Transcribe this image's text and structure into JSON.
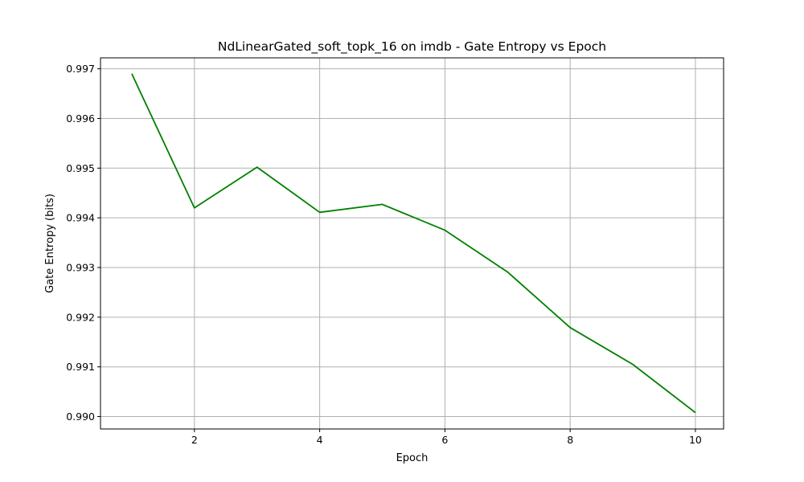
{
  "chart_data": {
    "type": "line",
    "title": "NdLinearGated_soft_topk_16 on imdb - Gate Entropy vs Epoch",
    "xlabel": "Epoch",
    "ylabel": "Gate Entropy (bits)",
    "xlim": [
      0.5,
      10.45
    ],
    "ylim": [
      0.98975,
      0.99722
    ],
    "xticks": [
      2,
      4,
      6,
      8,
      10
    ],
    "yticks": [
      0.99,
      0.991,
      0.992,
      0.993,
      0.994,
      0.995,
      0.996,
      0.997
    ],
    "xtick_labels": [
      "2",
      "4",
      "6",
      "8",
      "10"
    ],
    "ytick_labels": [
      "0.990",
      "0.991",
      "0.992",
      "0.993",
      "0.994",
      "0.995",
      "0.996",
      "0.997"
    ],
    "grid": true,
    "series": [
      {
        "color": "#008000",
        "x": [
          1,
          2,
          3,
          4,
          5,
          6,
          7,
          8,
          9,
          10
        ],
        "y": [
          0.9969,
          0.9942,
          0.99502,
          0.99411,
          0.99427,
          0.99375,
          0.99291,
          0.99179,
          0.99105,
          0.99008
        ]
      }
    ]
  }
}
